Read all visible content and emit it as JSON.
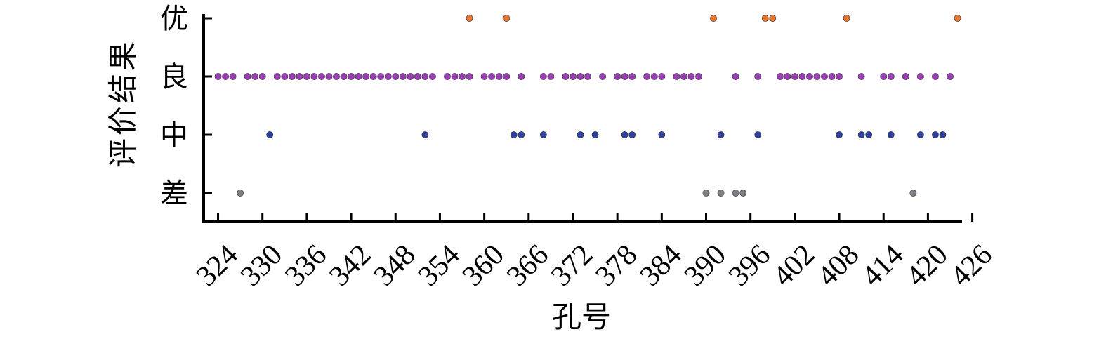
{
  "chart_data": {
    "type": "scatter",
    "xlabel": "孔号",
    "ylabel": "评价结果",
    "x_ticks": [
      324,
      330,
      336,
      342,
      348,
      354,
      360,
      366,
      372,
      378,
      384,
      390,
      396,
      402,
      408,
      414,
      420,
      426
    ],
    "xlim": [
      323,
      425
    ],
    "y_categories": [
      "差",
      "中",
      "良",
      "优"
    ],
    "grid": false,
    "legend": "none",
    "series": [
      {
        "category": "优",
        "color": "#e8742e",
        "x": [
          358,
          363,
          391,
          398,
          399,
          409,
          424
        ]
      },
      {
        "category": "良",
        "color": "#9b3fb5",
        "x": [
          324,
          325,
          326,
          328,
          329,
          330,
          332,
          333,
          334,
          335,
          336,
          337,
          338,
          339,
          340,
          341,
          342,
          343,
          344,
          345,
          346,
          347,
          348,
          349,
          350,
          351,
          352,
          353,
          355,
          356,
          357,
          358,
          360,
          361,
          362,
          363,
          365,
          368,
          369,
          371,
          372,
          373,
          374,
          376,
          378,
          379,
          380,
          382,
          383,
          384,
          386,
          387,
          388,
          389,
          394,
          397,
          400,
          401,
          402,
          403,
          404,
          405,
          406,
          407,
          408,
          411,
          414,
          415,
          417,
          419,
          421,
          423
        ]
      },
      {
        "category": "中",
        "color": "#2e3f9e",
        "x": [
          331,
          352,
          364,
          365,
          368,
          373,
          375,
          379,
          380,
          384,
          392,
          397,
          408,
          411,
          412,
          415,
          419,
          421,
          422
        ]
      },
      {
        "category": "差",
        "color": "#7f7f86",
        "x": [
          327,
          390,
          392,
          394,
          395,
          418
        ]
      }
    ]
  }
}
